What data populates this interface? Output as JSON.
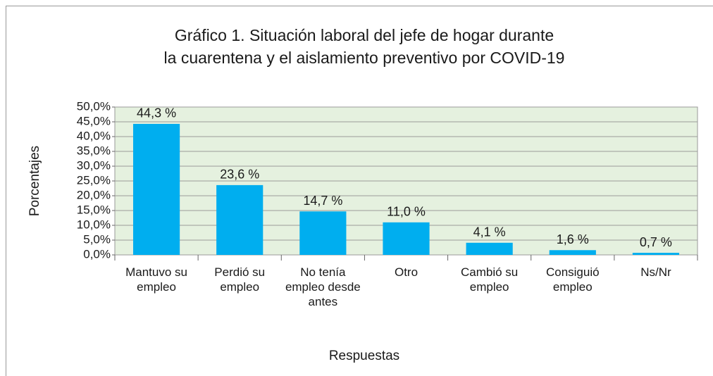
{
  "chart_data": {
    "type": "bar",
    "title": [
      "Gráfico 1. Situación laboral del jefe de hogar durante",
      "la cuarentena y el aislamiento preventivo por COVID-19"
    ],
    "x_label": "Respuestas",
    "y_label": "Porcentajes",
    "categories": [
      "Mantuvo su empleo",
      "Perdió su empleo",
      "No tenía empleo desde antes",
      "Otro",
      "Cambió su empleo",
      "Consiguió empleo",
      "Ns/Nr"
    ],
    "values": [
      44.3,
      23.6,
      14.7,
      11.0,
      4.1,
      1.6,
      0.7
    ],
    "value_labels": [
      "44,3 %",
      "23,6 %",
      "14,7 %",
      "11,0 %",
      "4,1 %",
      "1,6 %",
      "0,7 %"
    ],
    "color": "#00aeef",
    "ylim": [
      0,
      50
    ],
    "yticks": [
      {
        "value": 0,
        "label": "0,0%"
      },
      {
        "value": 5,
        "label": "5,0%"
      },
      {
        "value": 10,
        "label": "10,0%"
      },
      {
        "value": 15,
        "label": "15,0%"
      },
      {
        "value": 20,
        "label": "20,0%"
      },
      {
        "value": 25,
        "label": "25,0%"
      },
      {
        "value": 30,
        "label": "30,0%"
      },
      {
        "value": 35,
        "label": "35,0%"
      },
      {
        "value": 40,
        "label": "40,0%"
      },
      {
        "value": 45,
        "label": "45,0%"
      },
      {
        "value": 50,
        "label": "50,0%"
      }
    ],
    "grid": true
  }
}
